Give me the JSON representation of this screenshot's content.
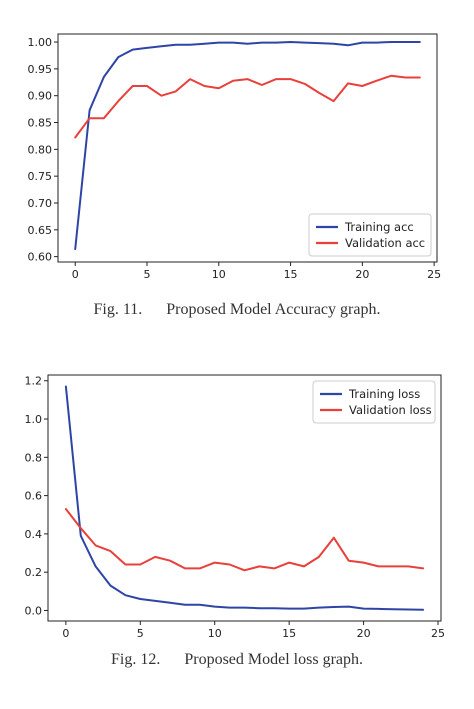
{
  "header_fragment": "",
  "footer_fragment": "",
  "colors": {
    "training": "#2e45a5",
    "validation": "#e8403b",
    "grid_frame": "#222222"
  },
  "chart_data": [
    {
      "type": "line",
      "caption": "Fig. 11.      Proposed Model Accuracy graph.",
      "title": "",
      "xlabel": "",
      "ylabel": "",
      "xlim": [
        -1.2,
        25.2
      ],
      "ylim": [
        0.59,
        1.015
      ],
      "x_ticks": [
        0,
        5,
        10,
        15,
        20,
        25
      ],
      "y_ticks": [
        0.6,
        0.65,
        0.7,
        0.75,
        0.8,
        0.85,
        0.9,
        0.95,
        1.0
      ],
      "y_tick_labels": [
        "0.60",
        "0.65",
        "0.70",
        "0.75",
        "0.80",
        "0.85",
        "0.90",
        "0.95",
        "1.00"
      ],
      "legend_position": "lower-right",
      "grid": false,
      "x": [
        0,
        1,
        2,
        3,
        4,
        5,
        6,
        7,
        8,
        9,
        10,
        11,
        12,
        13,
        14,
        15,
        16,
        17,
        18,
        19,
        20,
        21,
        22,
        23,
        24
      ],
      "series": [
        {
          "name": "Training acc",
          "color": "#2e45a5",
          "values": [
            0.614,
            0.873,
            0.935,
            0.972,
            0.986,
            0.989,
            0.992,
            0.995,
            0.995,
            0.997,
            0.999,
            0.999,
            0.997,
            0.999,
            0.999,
            1.0,
            0.999,
            0.998,
            0.997,
            0.994,
            0.999,
            0.999,
            1.0,
            1.0,
            1.0
          ]
        },
        {
          "name": "Validation acc",
          "color": "#e8403b",
          "values": [
            0.822,
            0.858,
            0.858,
            0.89,
            0.918,
            0.918,
            0.9,
            0.908,
            0.931,
            0.918,
            0.914,
            0.928,
            0.931,
            0.92,
            0.931,
            0.931,
            0.922,
            0.905,
            0.89,
            0.923,
            0.918,
            0.928,
            0.937,
            0.934,
            0.934
          ]
        }
      ]
    },
    {
      "type": "line",
      "caption": "Fig. 12.      Proposed Model loss graph.",
      "title": "",
      "xlabel": "",
      "ylabel": "",
      "xlim": [
        -1.2,
        25.2
      ],
      "ylim": [
        -0.055,
        1.23
      ],
      "x_ticks": [
        0,
        5,
        10,
        15,
        20,
        25
      ],
      "y_ticks": [
        0.0,
        0.2,
        0.4,
        0.6,
        0.8,
        1.0,
        1.2
      ],
      "y_tick_labels": [
        "0.0",
        "0.2",
        "0.4",
        "0.6",
        "0.8",
        "1.0",
        "1.2"
      ],
      "legend_position": "upper-right",
      "grid": false,
      "x": [
        0,
        1,
        2,
        3,
        4,
        5,
        6,
        7,
        8,
        9,
        10,
        11,
        12,
        13,
        14,
        15,
        16,
        17,
        18,
        19,
        20,
        21,
        22,
        23,
        24
      ],
      "series": [
        {
          "name": "Training loss",
          "color": "#2e45a5",
          "values": [
            1.17,
            0.39,
            0.23,
            0.13,
            0.08,
            0.06,
            0.05,
            0.04,
            0.03,
            0.03,
            0.02,
            0.015,
            0.015,
            0.012,
            0.012,
            0.01,
            0.01,
            0.015,
            0.018,
            0.02,
            0.01,
            0.008,
            0.006,
            0.005,
            0.004
          ]
        },
        {
          "name": "Validation loss",
          "color": "#e8403b",
          "values": [
            0.53,
            0.43,
            0.34,
            0.31,
            0.24,
            0.24,
            0.28,
            0.26,
            0.22,
            0.22,
            0.25,
            0.24,
            0.21,
            0.23,
            0.22,
            0.25,
            0.23,
            0.28,
            0.38,
            0.26,
            0.25,
            0.23,
            0.23,
            0.23,
            0.22
          ]
        }
      ]
    }
  ]
}
